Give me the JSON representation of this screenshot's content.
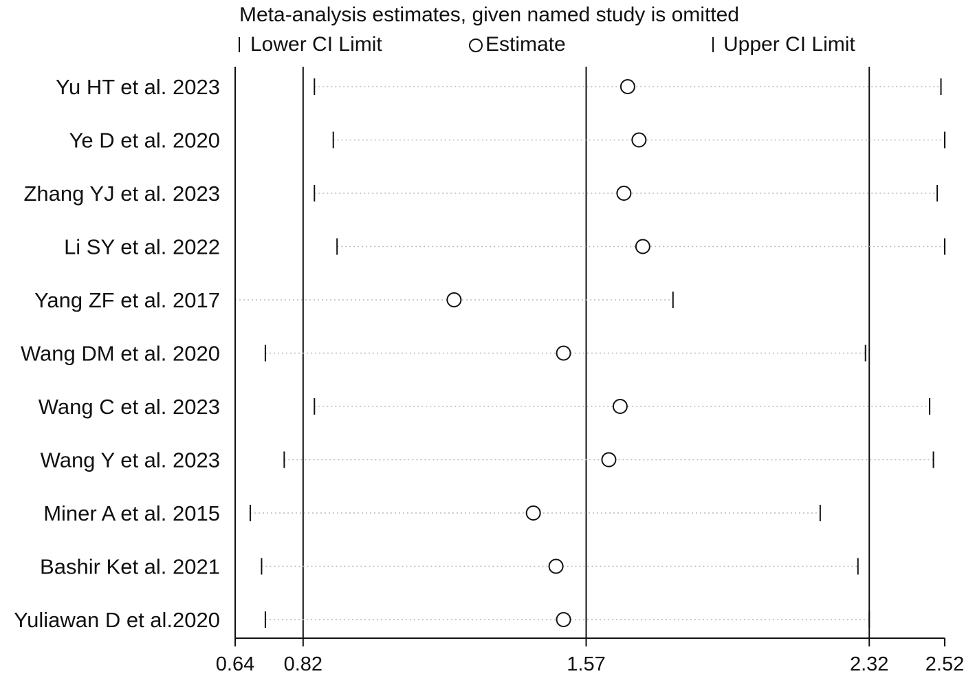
{
  "chart_data": {
    "type": "scatter",
    "title": "Meta-analysis estimates, given named study is omitted",
    "legend": {
      "placement": "top",
      "entries": [
        "Lower CI Limit",
        "Estimate",
        "Upper CI Limit"
      ]
    },
    "x_ticks": [
      {
        "value": 0.64,
        "label": "0.64"
      },
      {
        "value": 0.82,
        "label": "0.82"
      },
      {
        "value": 1.57,
        "label": "1.57"
      },
      {
        "value": 2.32,
        "label": "2.32"
      },
      {
        "value": 2.52,
        "label": "2.52"
      }
    ],
    "xlim": [
      0.64,
      2.52
    ],
    "reference_lines": [
      0.82,
      1.57,
      2.32
    ],
    "studies": [
      {
        "label": "Yu HT et al. 2023",
        "lower": 0.85,
        "estimate": 1.68,
        "upper": 2.51
      },
      {
        "label": "Ye D et al. 2020",
        "lower": 0.9,
        "estimate": 1.71,
        "upper": 2.52
      },
      {
        "label": "Zhang YJ et al. 2023",
        "lower": 0.85,
        "estimate": 1.67,
        "upper": 2.5
      },
      {
        "label": "Li SY et al. 2022",
        "lower": 0.91,
        "estimate": 1.72,
        "upper": 2.52
      },
      {
        "label": "Yang ZF et al. 2017",
        "lower": 0.64,
        "estimate": 1.22,
        "upper": 1.8
      },
      {
        "label": "Wang DM et al. 2020",
        "lower": 0.72,
        "estimate": 1.51,
        "upper": 2.31
      },
      {
        "label": "Wang C et al. 2023",
        "lower": 0.85,
        "estimate": 1.66,
        "upper": 2.48
      },
      {
        "label": "Wang Y et al. 2023",
        "lower": 0.77,
        "estimate": 1.63,
        "upper": 2.49
      },
      {
        "label": "Miner A et al. 2015",
        "lower": 0.68,
        "estimate": 1.43,
        "upper": 2.19
      },
      {
        "label": "Bashir Ket al. 2021",
        "lower": 0.71,
        "estimate": 1.49,
        "upper": 2.29
      },
      {
        "label": "Yuliawan D et al.2020",
        "lower": 0.72,
        "estimate": 1.51,
        "upper": 2.32
      }
    ]
  }
}
